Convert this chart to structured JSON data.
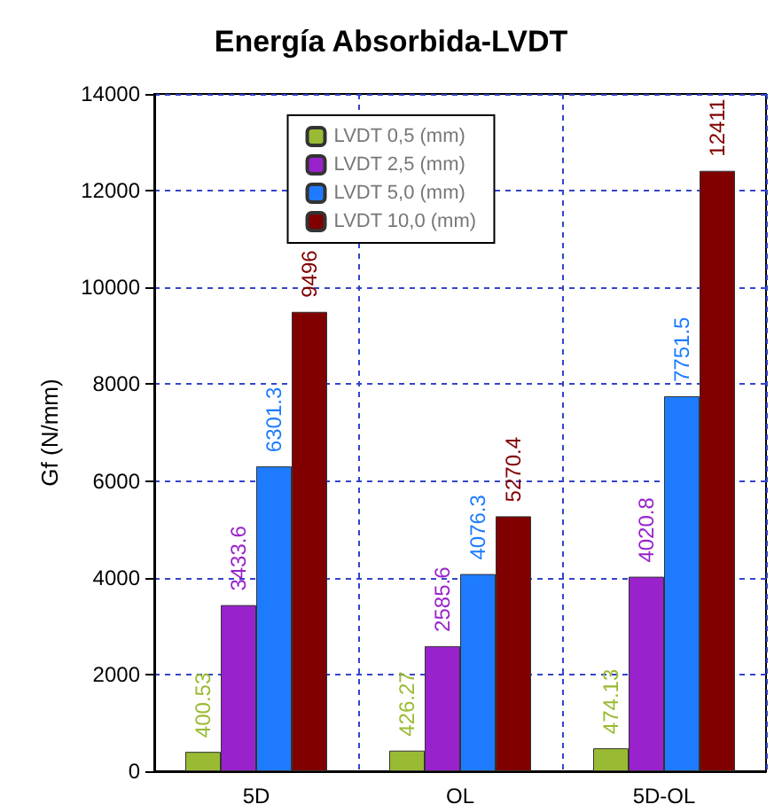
{
  "chart_data": {
    "type": "bar",
    "title": "Energía Absorbida-LVDT",
    "ylabel": "Gf (N/mm)",
    "categories": [
      "5D",
      "OL",
      "5D-OL"
    ],
    "series": [
      {
        "name": "LVDT 0,5 (mm)",
        "color": "#99bb33",
        "values": [
          400.53,
          426.27,
          474.13
        ]
      },
      {
        "name": "LVDT 2,5 (mm)",
        "color": "#9922cc",
        "values": [
          3433.6,
          2585.6,
          4020.8
        ]
      },
      {
        "name": "LVDT 5,0 (mm)",
        "color": "#1e7bff",
        "values": [
          6301.3,
          4076.3,
          7751.5
        ]
      },
      {
        "name": "LVDT 10,0 (mm)",
        "color": "#800000",
        "values": [
          9496,
          5270.4,
          12411
        ]
      }
    ],
    "ylim": [
      0,
      14000
    ],
    "yticks": [
      0,
      2000,
      4000,
      6000,
      8000,
      10000,
      12000,
      14000
    ],
    "grid": true,
    "legend": "top",
    "data_labels": true
  }
}
